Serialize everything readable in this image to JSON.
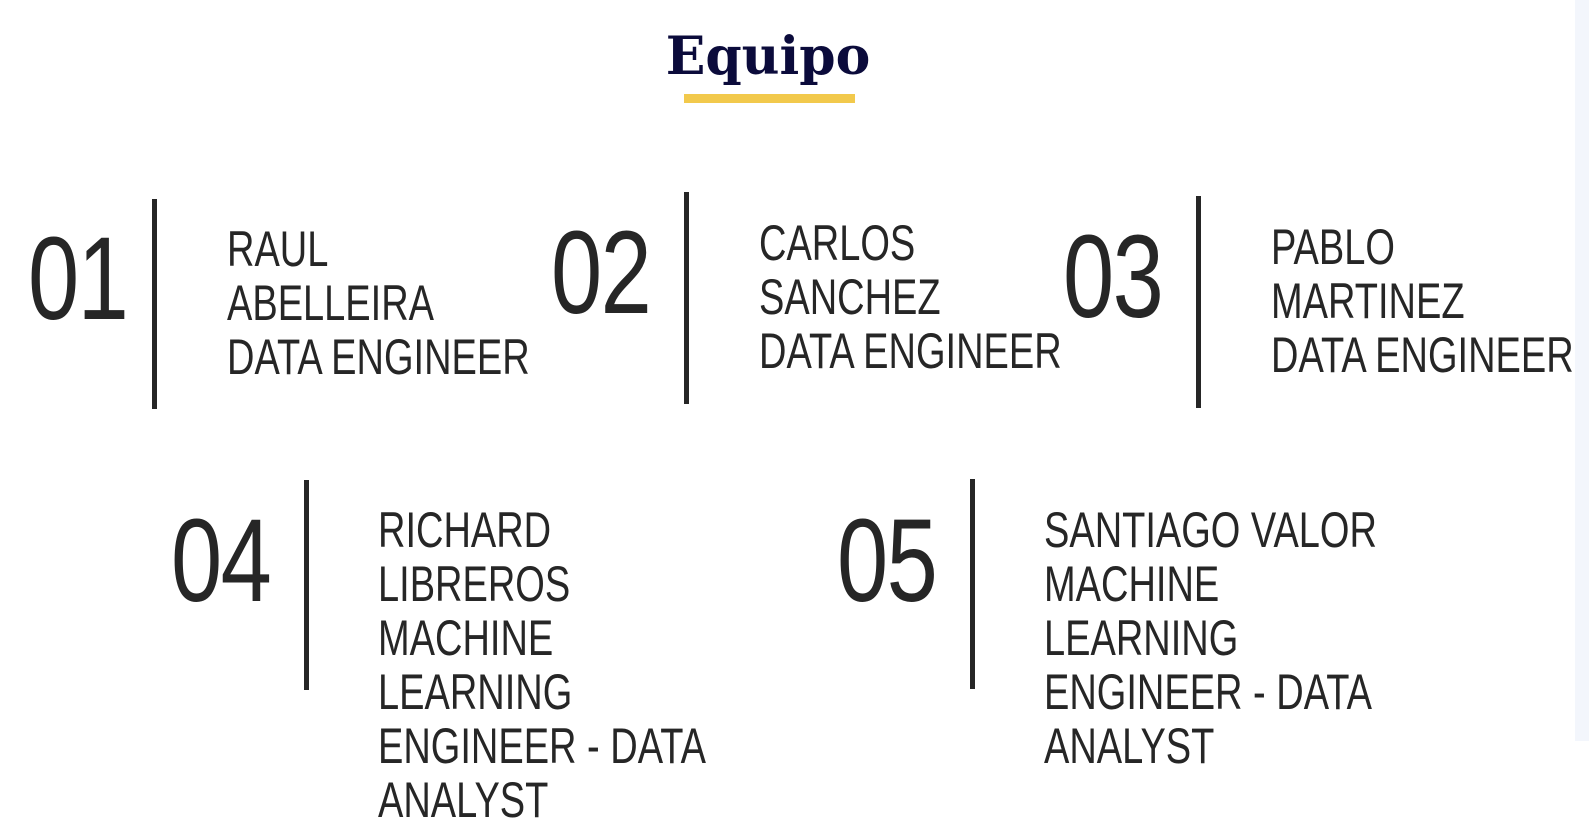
{
  "section": {
    "title": "Equipo"
  },
  "members": [
    {
      "number": "01",
      "name": "RAUL ABELLEIRA",
      "name_line1": "RAUL",
      "name_line2": "ABELLEIRA",
      "role": "DATA ENGINEER"
    },
    {
      "number": "02",
      "name": "CARLOS SANCHEZ",
      "name_line1": "CARLOS",
      "name_line2": "SANCHEZ",
      "role": "DATA ENGINEER"
    },
    {
      "number": "03",
      "name": "PABLO MARTINEZ",
      "name_line1": "PABLO",
      "name_line2": "MARTINEZ",
      "role": "DATA ENGINEER"
    },
    {
      "number": "04",
      "name": "RICHARD LIBREROS",
      "role_line1": "MACHINE LEARNING",
      "role_line2": "ENGINEER - DATA",
      "role_line3": "ANALYST"
    },
    {
      "number": "05",
      "name": "SANTIAGO VALOR",
      "role_line1": "MACHINE LEARNING",
      "role_line2": "ENGINEER - DATA",
      "role_line3": "ANALYST"
    }
  ],
  "colors": {
    "title": "#0b0b3b",
    "underline": "#f2c94c",
    "text": "#262626"
  }
}
